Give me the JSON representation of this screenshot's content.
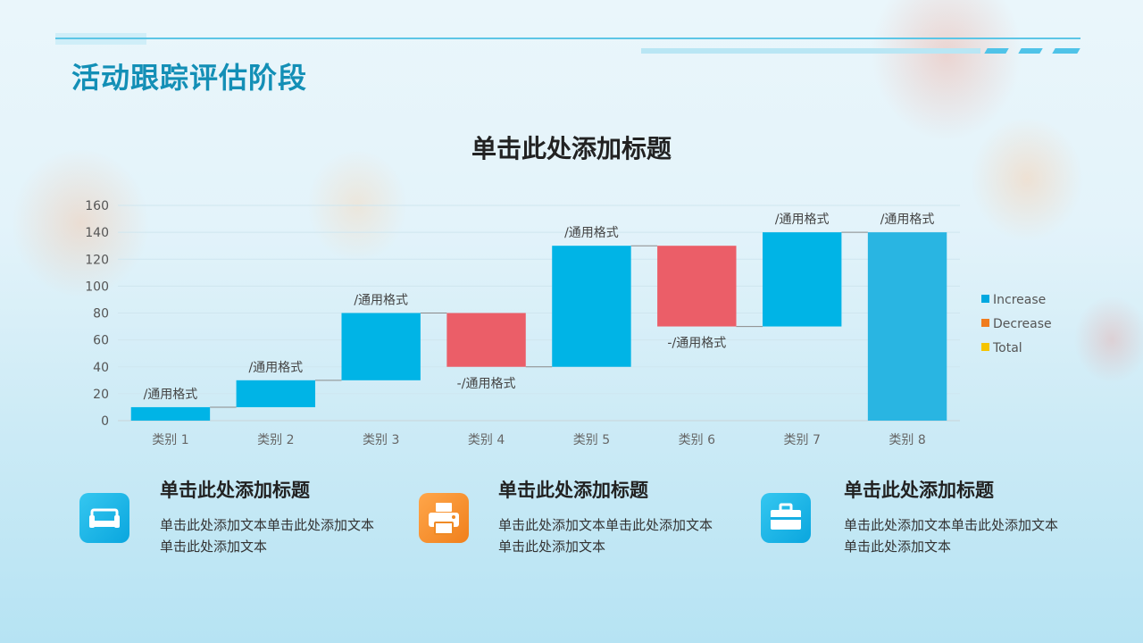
{
  "page_title": "活动跟踪评估阶段",
  "colors": {
    "increase": "#00b4e6",
    "decrease": "#eb5e68",
    "total": "#29b5e2",
    "legend_increase": "#00a8e0",
    "legend_decrease": "#f07c1e",
    "legend_total": "#f5c400",
    "accent": "#138fb6"
  },
  "chart_data": {
    "type": "waterfall",
    "title": "单击此处添加标题",
    "categories": [
      "类别 1",
      "类别 2",
      "类别 3",
      "类别 4",
      "类别 5",
      "类别 6",
      "类别 7",
      "类别 8"
    ],
    "values": [
      10,
      20,
      50,
      -40,
      90,
      -60,
      70,
      140
    ],
    "kinds": [
      "increase",
      "increase",
      "increase",
      "decrease",
      "increase",
      "decrease",
      "increase",
      "total"
    ],
    "data_labels": [
      "/通用格式",
      "/通用格式",
      "/通用格式",
      "-/通用格式",
      "/通用格式",
      "-/通用格式",
      "/通用格式",
      "/通用格式"
    ],
    "ylim": [
      0,
      160
    ],
    "yticks": [
      0,
      20,
      40,
      60,
      80,
      100,
      120,
      140,
      160
    ],
    "legend": [
      "Increase",
      "Decrease",
      "Total"
    ],
    "legend_position": "right",
    "grid": true
  },
  "cards": [
    {
      "icon": "sofa-icon",
      "title": "单击此处添加标题",
      "text": "单击此处添加文本单击此处添加文本单击此处添加文本"
    },
    {
      "icon": "printer-icon",
      "title": "单击此处添加标题",
      "text": "单击此处添加文本单击此处添加文本单击此处添加文本"
    },
    {
      "icon": "toolbox-icon",
      "title": "单击此处添加标题",
      "text": "单击此处添加文本单击此处添加文本单击此处添加文本"
    }
  ]
}
